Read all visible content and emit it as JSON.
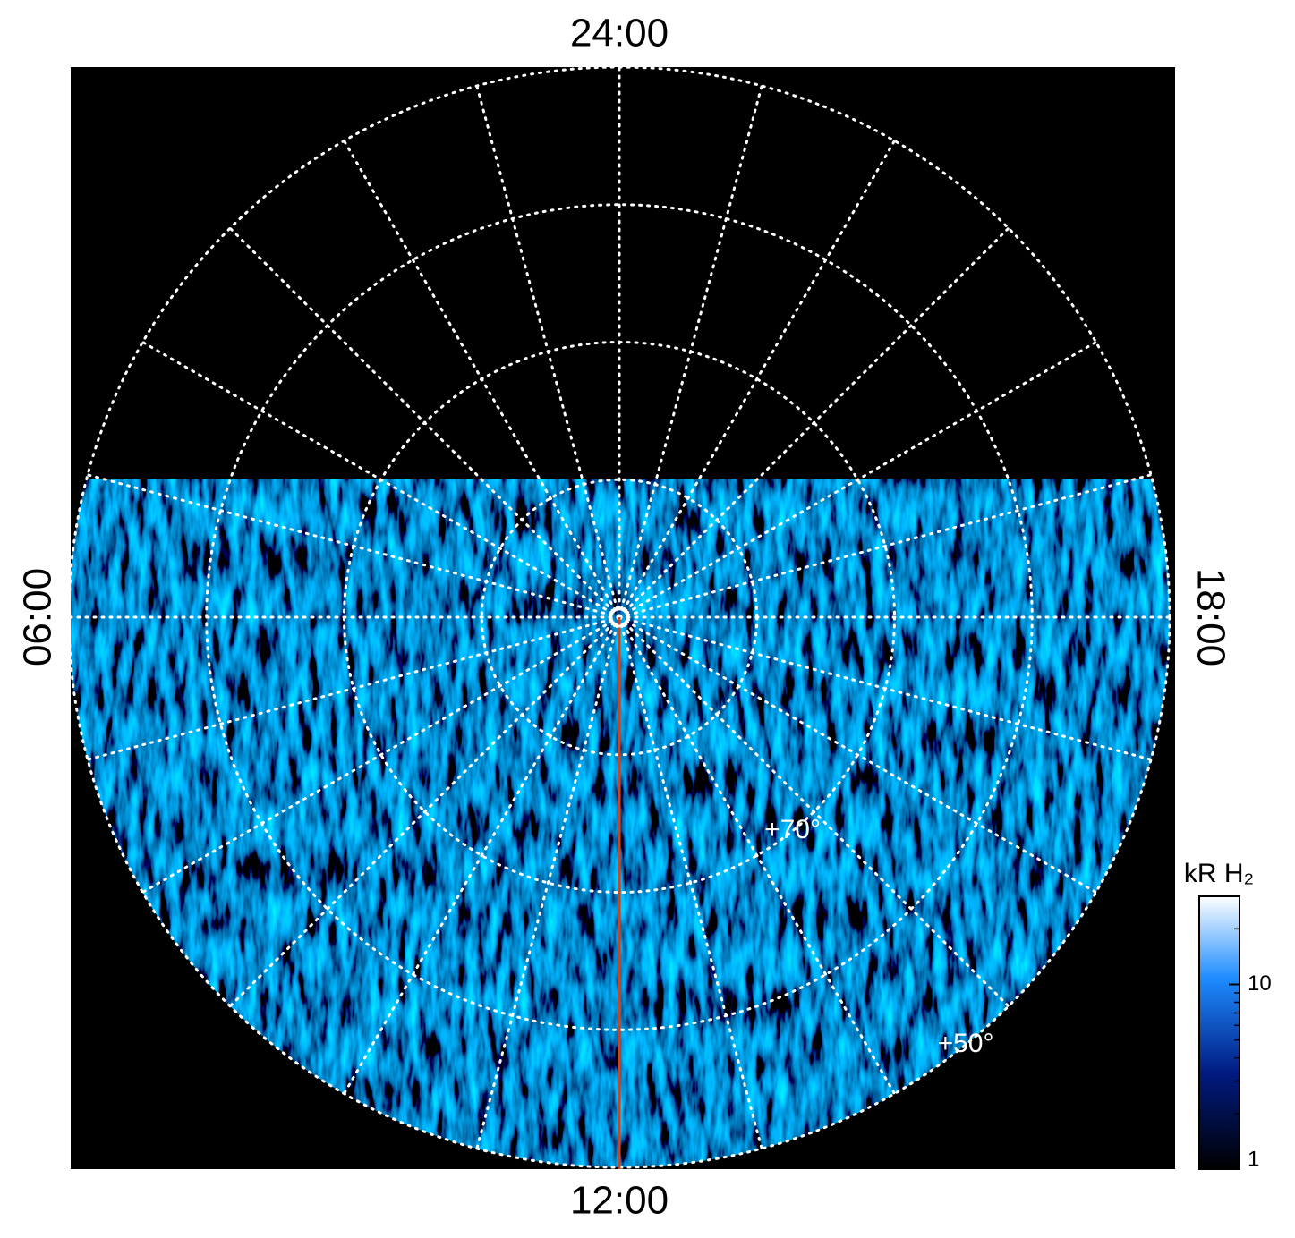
{
  "chart_data": {
    "type": "polar",
    "lt_ticks": [
      {
        "value": 24,
        "label": "24:00"
      },
      {
        "value": 6,
        "label": "06:00"
      },
      {
        "value": 12,
        "label": "12:00"
      },
      {
        "value": 18,
        "label": "18:00"
      }
    ],
    "rlim": [
      90,
      50
    ],
    "rticks": [
      {
        "value": 80,
        "label": null
      },
      {
        "value": 70,
        "label": "+70°"
      },
      {
        "value": 60,
        "label": null
      },
      {
        "value": 50,
        "label": "+50°"
      }
    ],
    "grid": true,
    "colorbar": {
      "label": "kR H₂",
      "lim": [
        1,
        30
      ],
      "ticks": [
        1,
        10
      ],
      "log": true
    }
  }
}
